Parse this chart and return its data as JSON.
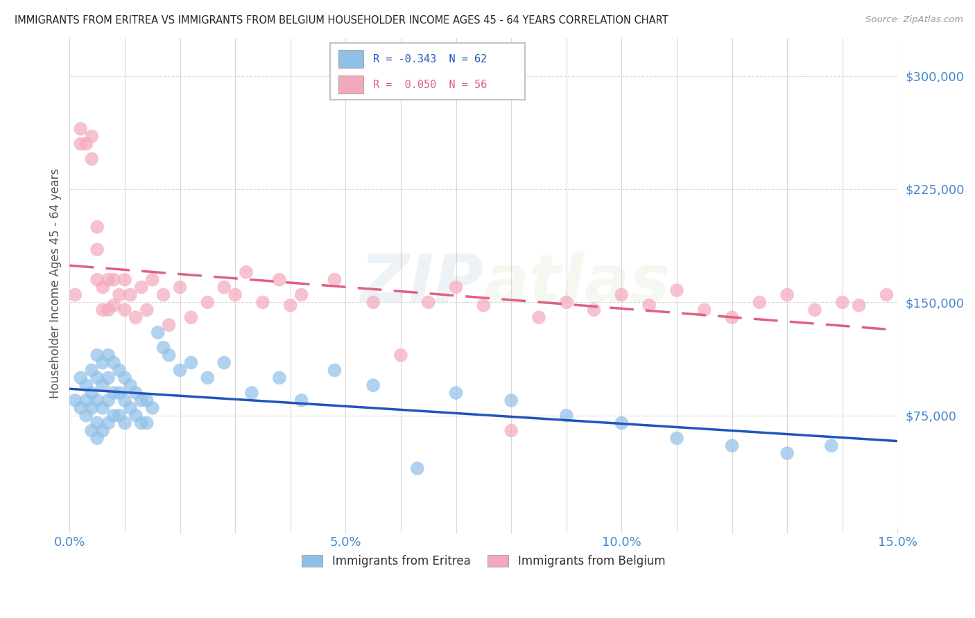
{
  "title": "IMMIGRANTS FROM ERITREA VS IMMIGRANTS FROM BELGIUM HOUSEHOLDER INCOME AGES 45 - 64 YEARS CORRELATION CHART",
  "source": "Source: ZipAtlas.com",
  "ylabel": "Householder Income Ages 45 - 64 years",
  "xlim": [
    0,
    0.15
  ],
  "ylim": [
    0,
    325000
  ],
  "yticks": [
    0,
    75000,
    150000,
    225000,
    300000
  ],
  "ytick_labels": [
    "",
    "$75,000",
    "$150,000",
    "$225,000",
    "$300,000"
  ],
  "xticks": [
    0.0,
    0.01,
    0.02,
    0.03,
    0.04,
    0.05,
    0.06,
    0.07,
    0.08,
    0.09,
    0.1,
    0.11,
    0.12,
    0.13,
    0.14,
    0.15
  ],
  "xtick_labels": [
    "0.0%",
    "",
    "",
    "",
    "",
    "5.0%",
    "",
    "",
    "",
    "",
    "10.0%",
    "",
    "",
    "",
    "",
    "15.0%"
  ],
  "eritrea_color": "#90C0E8",
  "belgium_color": "#F4A8BC",
  "eritrea_line_color": "#2255BB",
  "belgium_line_color": "#E06080",
  "R_eritrea": -0.343,
  "N_eritrea": 62,
  "R_belgium": 0.05,
  "N_belgium": 56,
  "watermark": "ZIPatlas",
  "legend_eritrea": "Immigrants from Eritrea",
  "legend_belgium": "Immigrants from Belgium",
  "background_color": "#FFFFFF",
  "grid_color": "#D8D8D8",
  "title_color": "#222222",
  "axis_label_color": "#555555",
  "tick_color": "#4488CC",
  "eritrea_scatter_x": [
    0.001,
    0.002,
    0.002,
    0.003,
    0.003,
    0.003,
    0.004,
    0.004,
    0.004,
    0.004,
    0.005,
    0.005,
    0.005,
    0.005,
    0.005,
    0.006,
    0.006,
    0.006,
    0.006,
    0.007,
    0.007,
    0.007,
    0.007,
    0.008,
    0.008,
    0.008,
    0.009,
    0.009,
    0.009,
    0.01,
    0.01,
    0.01,
    0.011,
    0.011,
    0.012,
    0.012,
    0.013,
    0.013,
    0.014,
    0.014,
    0.015,
    0.016,
    0.017,
    0.018,
    0.02,
    0.022,
    0.025,
    0.028,
    0.033,
    0.038,
    0.042,
    0.048,
    0.055,
    0.063,
    0.07,
    0.08,
    0.09,
    0.1,
    0.11,
    0.12,
    0.13,
    0.138
  ],
  "eritrea_scatter_y": [
    85000,
    100000,
    80000,
    95000,
    85000,
    75000,
    105000,
    90000,
    80000,
    65000,
    115000,
    100000,
    85000,
    70000,
    60000,
    110000,
    95000,
    80000,
    65000,
    115000,
    100000,
    85000,
    70000,
    110000,
    90000,
    75000,
    105000,
    90000,
    75000,
    100000,
    85000,
    70000,
    95000,
    80000,
    90000,
    75000,
    85000,
    70000,
    85000,
    70000,
    80000,
    130000,
    120000,
    115000,
    105000,
    110000,
    100000,
    110000,
    90000,
    100000,
    85000,
    105000,
    95000,
    40000,
    90000,
    85000,
    75000,
    70000,
    60000,
    55000,
    50000,
    55000
  ],
  "belgium_scatter_x": [
    0.001,
    0.002,
    0.002,
    0.003,
    0.004,
    0.004,
    0.005,
    0.005,
    0.005,
    0.006,
    0.006,
    0.007,
    0.007,
    0.008,
    0.008,
    0.009,
    0.01,
    0.01,
    0.011,
    0.012,
    0.013,
    0.014,
    0.015,
    0.017,
    0.018,
    0.02,
    0.022,
    0.025,
    0.028,
    0.03,
    0.032,
    0.035,
    0.038,
    0.04,
    0.042,
    0.048,
    0.055,
    0.06,
    0.065,
    0.07,
    0.075,
    0.08,
    0.085,
    0.09,
    0.095,
    0.1,
    0.105,
    0.11,
    0.115,
    0.12,
    0.125,
    0.13,
    0.135,
    0.14,
    0.143,
    0.148
  ],
  "belgium_scatter_y": [
    155000,
    265000,
    255000,
    255000,
    260000,
    245000,
    200000,
    185000,
    165000,
    160000,
    145000,
    165000,
    145000,
    165000,
    148000,
    155000,
    165000,
    145000,
    155000,
    140000,
    160000,
    145000,
    165000,
    155000,
    135000,
    160000,
    140000,
    150000,
    160000,
    155000,
    170000,
    150000,
    165000,
    148000,
    155000,
    165000,
    150000,
    115000,
    150000,
    160000,
    148000,
    65000,
    140000,
    150000,
    145000,
    155000,
    148000,
    158000,
    145000,
    140000,
    150000,
    155000,
    145000,
    150000,
    148000,
    155000
  ]
}
